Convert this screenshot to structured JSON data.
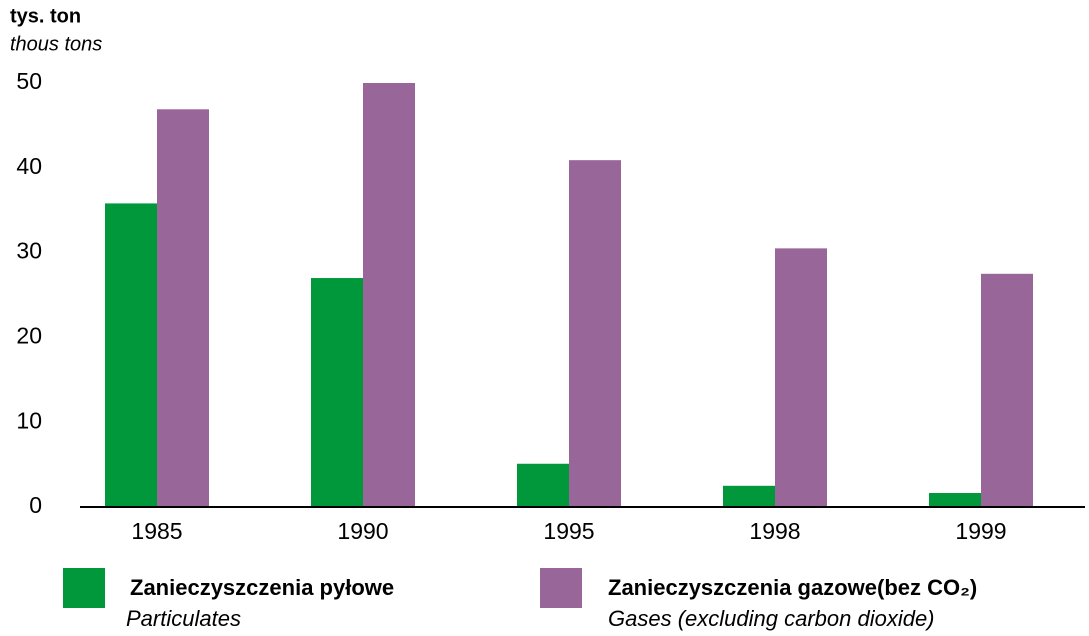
{
  "chart_data": {
    "type": "bar",
    "y_label": "tys. ton",
    "y_label_en": "thous tons",
    "categories": [
      "1985",
      "1990",
      "1995",
      "1998",
      "1999"
    ],
    "series": [
      {
        "name": "Zanieczyszczenia pyłowe",
        "name_en": "Particulates",
        "color": "#00983a",
        "values": [
          35.8,
          27.0,
          5.1,
          2.5,
          1.65
        ]
      },
      {
        "name": "Zanieczyszczenia gazowe(bez CO₂)",
        "name_en": "Gases (excluding carbon dioxide)",
        "color": "#996699",
        "values": [
          46.9,
          50.0,
          40.9,
          30.5,
          27.5
        ]
      }
    ],
    "ylim": [
      0,
      50
    ],
    "yticks": [
      0,
      10,
      20,
      30,
      40,
      50
    ],
    "grid": false,
    "legend": "bottom"
  }
}
